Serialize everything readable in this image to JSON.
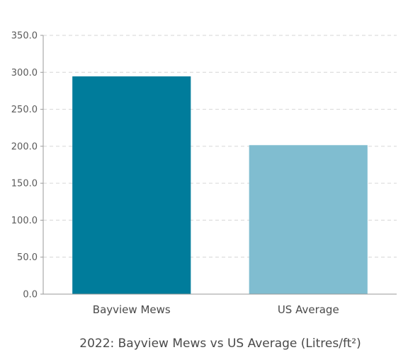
{
  "chart_data": {
    "type": "bar",
    "title": "2022: Bayview Mews vs US Average (Litres/ft²)",
    "xlabel": "",
    "ylabel": "",
    "categories": [
      "Bayview Mews",
      "US Average"
    ],
    "values": [
      294.5,
      201.5
    ],
    "ylim": [
      0,
      350
    ],
    "yticks": [
      0,
      50,
      100,
      150,
      200,
      250,
      300,
      350
    ],
    "ytick_labels": [
      "0.0",
      "50.0",
      "100.0",
      "150.0",
      "200.0",
      "250.0",
      "300.0",
      "350.0"
    ],
    "bar_colors": [
      "#007c9b",
      "#80bdd0"
    ],
    "grid": true,
    "legend": "none"
  }
}
